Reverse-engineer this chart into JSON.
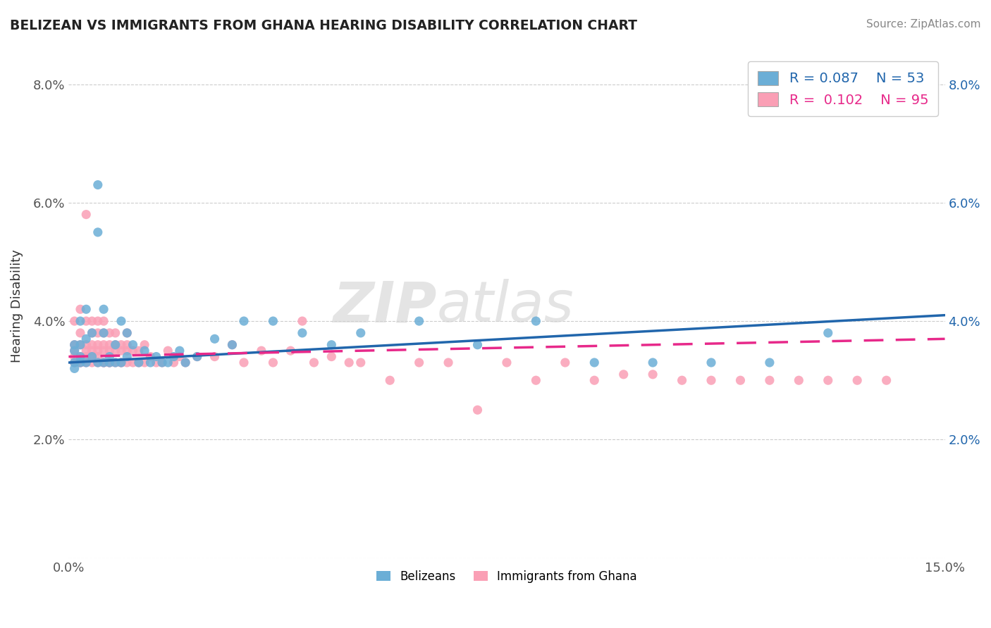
{
  "title": "BELIZEAN VS IMMIGRANTS FROM GHANA HEARING DISABILITY CORRELATION CHART",
  "source": "Source: ZipAtlas.com",
  "ylabel": "Hearing Disability",
  "xlim": [
    0.0,
    0.15
  ],
  "ylim": [
    0.0,
    0.085
  ],
  "xticks": [
    0.0,
    0.03,
    0.06,
    0.09,
    0.12,
    0.15
  ],
  "xticklabels": [
    "0.0%",
    "",
    "",
    "",
    "",
    "15.0%"
  ],
  "yticks": [
    0.0,
    0.02,
    0.04,
    0.06,
    0.08
  ],
  "yticklabels": [
    "",
    "2.0%",
    "4.0%",
    "6.0%",
    "8.0%"
  ],
  "belizean_color": "#6baed6",
  "ghana_color": "#fa9fb5",
  "belizean_line_color": "#2166ac",
  "ghana_line_color": "#e7298a",
  "belizean_R": 0.087,
  "belizean_N": 53,
  "ghana_R": 0.102,
  "ghana_N": 95,
  "legend_labels": [
    "Belizeans",
    "Immigrants from Ghana"
  ],
  "watermark": "ZIPatlas",
  "belizean_scatter_x": [
    0.001,
    0.001,
    0.001,
    0.001,
    0.002,
    0.002,
    0.002,
    0.002,
    0.003,
    0.003,
    0.003,
    0.004,
    0.004,
    0.005,
    0.005,
    0.005,
    0.006,
    0.006,
    0.006,
    0.007,
    0.007,
    0.008,
    0.008,
    0.009,
    0.009,
    0.01,
    0.01,
    0.011,
    0.012,
    0.013,
    0.014,
    0.015,
    0.016,
    0.017,
    0.018,
    0.019,
    0.02,
    0.022,
    0.025,
    0.028,
    0.03,
    0.035,
    0.04,
    0.045,
    0.05,
    0.06,
    0.07,
    0.08,
    0.09,
    0.1,
    0.11,
    0.12,
    0.13
  ],
  "belizean_scatter_y": [
    0.035,
    0.033,
    0.032,
    0.036,
    0.034,
    0.036,
    0.033,
    0.04,
    0.037,
    0.042,
    0.033,
    0.034,
    0.038,
    0.063,
    0.033,
    0.055,
    0.033,
    0.038,
    0.042,
    0.033,
    0.034,
    0.033,
    0.036,
    0.033,
    0.04,
    0.034,
    0.038,
    0.036,
    0.033,
    0.035,
    0.033,
    0.034,
    0.033,
    0.033,
    0.034,
    0.035,
    0.033,
    0.034,
    0.037,
    0.036,
    0.04,
    0.04,
    0.038,
    0.036,
    0.038,
    0.04,
    0.036,
    0.04,
    0.033,
    0.033,
    0.033,
    0.033,
    0.038
  ],
  "ghana_scatter_x": [
    0.001,
    0.001,
    0.001,
    0.001,
    0.001,
    0.002,
    0.002,
    0.002,
    0.002,
    0.002,
    0.002,
    0.003,
    0.003,
    0.003,
    0.003,
    0.003,
    0.003,
    0.004,
    0.004,
    0.004,
    0.004,
    0.004,
    0.004,
    0.005,
    0.005,
    0.005,
    0.005,
    0.005,
    0.005,
    0.006,
    0.006,
    0.006,
    0.006,
    0.006,
    0.006,
    0.007,
    0.007,
    0.007,
    0.007,
    0.007,
    0.008,
    0.008,
    0.008,
    0.008,
    0.009,
    0.009,
    0.009,
    0.009,
    0.01,
    0.01,
    0.01,
    0.01,
    0.011,
    0.011,
    0.012,
    0.012,
    0.013,
    0.013,
    0.014,
    0.015,
    0.016,
    0.017,
    0.018,
    0.019,
    0.02,
    0.022,
    0.025,
    0.028,
    0.03,
    0.033,
    0.035,
    0.038,
    0.04,
    0.042,
    0.045,
    0.048,
    0.05,
    0.055,
    0.06,
    0.065,
    0.07,
    0.075,
    0.08,
    0.085,
    0.09,
    0.095,
    0.1,
    0.105,
    0.11,
    0.115,
    0.12,
    0.125,
    0.13,
    0.135,
    0.14
  ],
  "ghana_scatter_y": [
    0.034,
    0.036,
    0.033,
    0.035,
    0.04,
    0.034,
    0.036,
    0.033,
    0.038,
    0.042,
    0.033,
    0.034,
    0.036,
    0.033,
    0.035,
    0.04,
    0.058,
    0.034,
    0.036,
    0.033,
    0.035,
    0.04,
    0.038,
    0.034,
    0.036,
    0.033,
    0.035,
    0.04,
    0.038,
    0.033,
    0.035,
    0.036,
    0.033,
    0.038,
    0.04,
    0.033,
    0.035,
    0.036,
    0.033,
    0.038,
    0.033,
    0.035,
    0.036,
    0.038,
    0.033,
    0.035,
    0.036,
    0.033,
    0.033,
    0.035,
    0.036,
    0.038,
    0.033,
    0.035,
    0.033,
    0.035,
    0.033,
    0.036,
    0.034,
    0.033,
    0.033,
    0.035,
    0.033,
    0.034,
    0.033,
    0.034,
    0.034,
    0.036,
    0.033,
    0.035,
    0.033,
    0.035,
    0.04,
    0.033,
    0.034,
    0.033,
    0.033,
    0.03,
    0.033,
    0.033,
    0.025,
    0.033,
    0.03,
    0.033,
    0.03,
    0.031,
    0.031,
    0.03,
    0.03,
    0.03,
    0.03,
    0.03,
    0.03,
    0.03,
    0.03
  ],
  "belizean_trend_x": [
    0.0,
    0.15
  ],
  "belizean_trend_y": [
    0.033,
    0.041
  ],
  "ghana_trend_x": [
    0.0,
    0.15
  ],
  "ghana_trend_y": [
    0.034,
    0.037
  ]
}
